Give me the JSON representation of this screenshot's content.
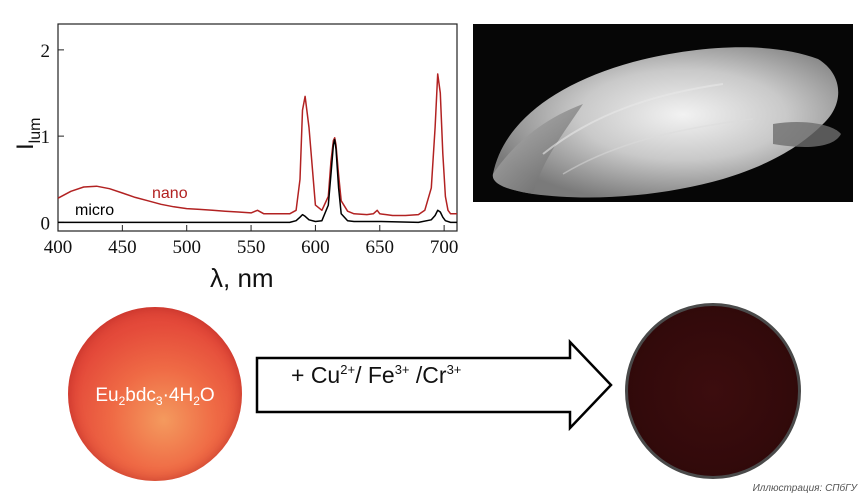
{
  "chart_data": {
    "type": "line",
    "xlabel": "λ, nm",
    "ylabel_main": "I",
    "ylabel_sub": "lum",
    "xlim": [
      400,
      710
    ],
    "ylim": [
      -0.1,
      2.3
    ],
    "x_ticks": [
      400,
      450,
      500,
      550,
      600,
      650,
      700
    ],
    "y_ticks": [
      0,
      1,
      2
    ],
    "series": [
      {
        "name": "nano",
        "color": "#b22222",
        "x": [
          400,
          410,
          420,
          430,
          440,
          450,
          460,
          470,
          480,
          490,
          500,
          510,
          520,
          530,
          540,
          550,
          555,
          560,
          570,
          580,
          585,
          588,
          590,
          592,
          595,
          600,
          605,
          610,
          612,
          614,
          615,
          616,
          618,
          620,
          625,
          630,
          640,
          645,
          648,
          650,
          655,
          660,
          670,
          680,
          685,
          690,
          693,
          695,
          697,
          699,
          701,
          703,
          705,
          710
        ],
        "y": [
          0.28,
          0.36,
          0.41,
          0.42,
          0.39,
          0.34,
          0.29,
          0.25,
          0.21,
          0.18,
          0.16,
          0.15,
          0.14,
          0.13,
          0.12,
          0.11,
          0.14,
          0.1,
          0.1,
          0.1,
          0.14,
          0.5,
          1.3,
          1.46,
          1.1,
          0.2,
          0.14,
          0.3,
          0.7,
          0.95,
          0.98,
          0.9,
          0.55,
          0.25,
          0.13,
          0.1,
          0.09,
          0.1,
          0.14,
          0.1,
          0.09,
          0.08,
          0.08,
          0.09,
          0.14,
          0.4,
          1.1,
          1.72,
          1.5,
          0.8,
          0.3,
          0.14,
          0.1,
          0.1
        ]
      },
      {
        "name": "micro",
        "color": "#000000",
        "x": [
          400,
          450,
          500,
          550,
          580,
          585,
          588,
          590,
          592,
          595,
          600,
          605,
          610,
          612,
          614,
          615,
          616,
          618,
          620,
          625,
          630,
          650,
          680,
          690,
          693,
          695,
          697,
          699,
          701,
          705,
          710
        ],
        "y": [
          0,
          0,
          0,
          0,
          0,
          0.02,
          0.06,
          0.09,
          0.07,
          0.03,
          0.01,
          0.02,
          0.2,
          0.55,
          0.9,
          0.96,
          0.85,
          0.4,
          0.1,
          0.02,
          0.01,
          0.01,
          0,
          0.03,
          0.08,
          0.14,
          0.12,
          0.06,
          0.02,
          0,
          0
        ]
      }
    ]
  },
  "diagram": {
    "formula_parts": [
      "Eu",
      "2",
      "bdc",
      "3",
      "·4H",
      "2",
      "O"
    ],
    "arrow_text": {
      "prefix": "+ Cu",
      "cu_charge": "2+",
      "mid1": "/ Fe",
      "fe_charge": "3+",
      "mid2": " /Cr",
      "cr_charge": "3+"
    }
  },
  "credit": "Иллюстрация: СПбГУ",
  "colors": {
    "nano": "#b22222",
    "micro": "#000000",
    "photo_before": "#e44a3a",
    "photo_after": "#330a0b"
  }
}
